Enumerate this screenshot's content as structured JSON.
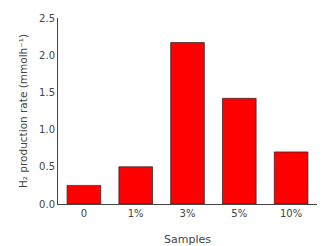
{
  "chart_data": {
    "type": "bar",
    "categories": [
      "0",
      "1%",
      "3%",
      "5%",
      "10%"
    ],
    "values": [
      0.25,
      0.5,
      2.17,
      1.42,
      0.7
    ],
    "color": "#FF0000",
    "xlabel": "Samples",
    "ylabel": "H₂ production rate (mmolh⁻¹)",
    "ylim": [
      0,
      2.5
    ],
    "yticks": [
      {
        "value": 0.0,
        "label": "0.0"
      },
      0.5,
      {
        "value": 1.0,
        "label": "1.0"
      },
      1.5,
      {
        "value": 2.0,
        "label": "2.0"
      },
      2.5
    ],
    "grid": false
  }
}
